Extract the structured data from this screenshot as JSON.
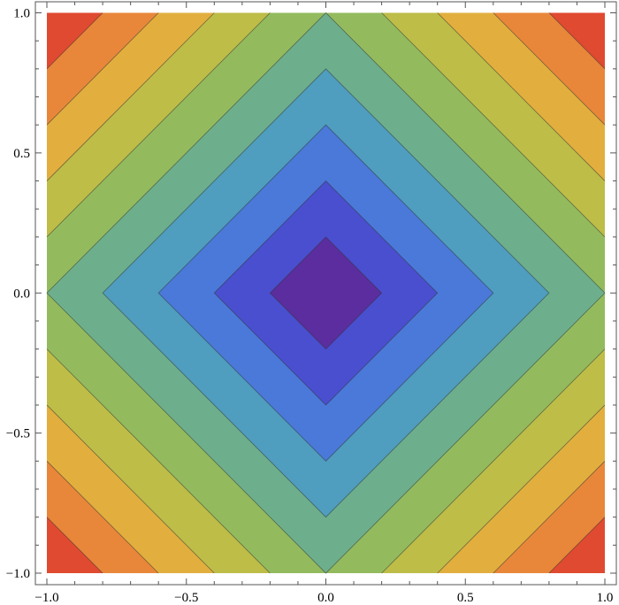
{
  "chart_data": {
    "type": "contour",
    "function": "|x| + |y|",
    "xlim": [
      -1,
      1
    ],
    "ylim": [
      -1,
      1
    ],
    "contour_levels": [
      0.2,
      0.4,
      0.6,
      0.8,
      1.0,
      1.2,
      1.4,
      1.6,
      1.8
    ],
    "band_colors": [
      "#5b2d9e",
      "#4a4fcf",
      "#4a79d9",
      "#4f9dbf",
      "#6daf8c",
      "#93bb5e",
      "#bdbd48",
      "#e2af3e",
      "#e8873a",
      "#e04a30"
    ],
    "x_ticks": [
      -1.0,
      -0.5,
      0.0,
      0.5,
      1.0
    ],
    "y_ticks": [
      -1.0,
      -0.5,
      0.0,
      0.5,
      1.0
    ],
    "x_tick_labels": [
      "−1.0",
      "−0.5",
      "0.0",
      "0.5",
      "1.0"
    ],
    "y_tick_labels": [
      "−1.0",
      "−0.5",
      "0.0",
      "0.5",
      "1.0"
    ],
    "grid": false
  }
}
